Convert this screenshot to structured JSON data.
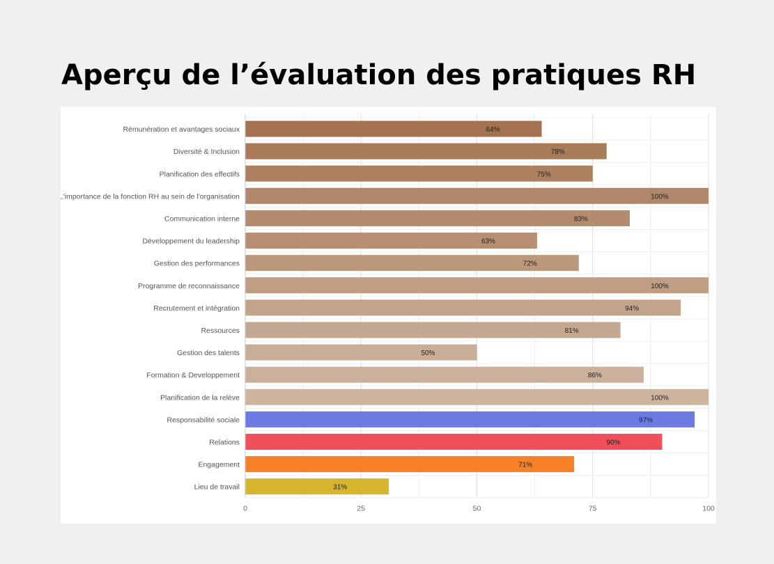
{
  "page": {
    "title": "Aperçu de l’évaluation des pratiques RH"
  },
  "chart_data": {
    "type": "bar",
    "orientation": "horizontal",
    "title": "",
    "xlabel": "",
    "ylabel": "",
    "xlim": [
      0,
      100
    ],
    "x_ticks": [
      0,
      25,
      50,
      75,
      100
    ],
    "grid": true,
    "legend": "none",
    "value_suffix": "%",
    "categories": [
      "Rémunération et avantages sociaux",
      "Diversité & Inclusion",
      "Planification des effectifs",
      "L'importance de la fonction RH au sein de l'organisation",
      "Communication interne",
      "Développement du leadership",
      "Gestion des performances",
      "Programme de reconnaissance",
      "Recrutement et intégration",
      "Ressources",
      "Gestion des talents",
      "Formation & Developpement",
      "Planification de la relève",
      "Responsabilité sociale",
      "Relations",
      "Engagement",
      "Lieu de travail"
    ],
    "values": [
      64,
      78,
      75,
      100,
      83,
      63,
      72,
      100,
      94,
      81,
      50,
      86,
      100,
      97,
      90,
      71,
      31
    ],
    "colors": [
      "#a3734f",
      "#a97b58",
      "#ad8060",
      "#b0876a",
      "#b38b6e",
      "#b78f73",
      "#bb977b",
      "#bf9e84",
      "#c2a48b",
      "#c5a891",
      "#c8ad97",
      "#cbb19c",
      "#cfb5a0",
      "#6b7be3",
      "#ef505a",
      "#f58026",
      "#d6b42e"
    ]
  }
}
